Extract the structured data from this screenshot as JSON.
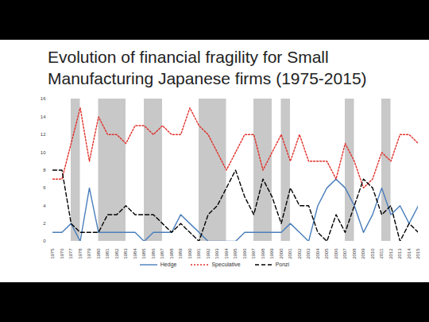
{
  "chart_data": {
    "type": "line",
    "title": "Evolution of financial fragility for Small Manufacturing Japanese firms (1975-2015)",
    "x": [
      1975,
      1976,
      1977,
      1978,
      1979,
      1980,
      1981,
      1982,
      1983,
      1984,
      1985,
      1986,
      1987,
      1988,
      1989,
      1990,
      1991,
      1992,
      1993,
      1994,
      1995,
      1996,
      1997,
      1998,
      1999,
      2000,
      2001,
      2002,
      2003,
      2004,
      2005,
      2006,
      2007,
      2008,
      2009,
      2010,
      2011,
      2012,
      2013,
      2014,
      2015
    ],
    "series": [
      {
        "name": "Hedge",
        "color": "#4a7ebb",
        "line_style": "solid",
        "values": [
          1,
          1,
          2,
          0,
          6,
          1,
          1,
          1,
          1,
          1,
          0,
          1,
          1,
          1,
          3,
          2,
          1,
          0,
          0,
          0,
          0,
          1,
          1,
          1,
          1,
          1,
          2,
          1,
          0,
          4,
          6,
          7,
          6,
          4,
          1,
          3,
          6,
          3,
          4,
          2,
          4
        ]
      },
      {
        "name": "Speculative",
        "color": "#e0302a",
        "line_style": "dotted",
        "values": [
          7,
          7,
          11,
          15,
          9,
          14,
          12,
          12,
          11,
          13,
          13,
          12,
          13,
          12,
          12,
          15,
          13,
          12,
          10,
          8,
          10,
          12,
          12,
          8,
          10,
          12,
          9,
          12,
          9,
          9,
          9,
          7,
          11,
          9,
          6,
          7,
          10,
          9,
          12,
          12,
          11
        ]
      },
      {
        "name": "Ponzi",
        "color": "#000000",
        "line_style": "dashed",
        "values": [
          8,
          8,
          2,
          1,
          1,
          1,
          3,
          3,
          4,
          3,
          3,
          3,
          2,
          1,
          2,
          1,
          0,
          3,
          4,
          6,
          8,
          5,
          3,
          7,
          5,
          2,
          6,
          4,
          4,
          1,
          0,
          3,
          1,
          4,
          7,
          6,
          3,
          4,
          0,
          2,
          1
        ]
      }
    ],
    "shaded": [
      [
        1977,
        1978
      ],
      [
        1980,
        1983
      ],
      [
        1985,
        1987
      ],
      [
        1991,
        1994
      ],
      [
        1997,
        1999
      ],
      [
        2000,
        2001
      ],
      [
        2007,
        2008
      ],
      [
        2011,
        2012
      ]
    ],
    "xlim": [
      1975,
      2015
    ],
    "xticks": [
      1975,
      1976,
      1977,
      1978,
      1979,
      1980,
      1981,
      1982,
      1983,
      1984,
      1985,
      1986,
      1987,
      1988,
      1989,
      1990,
      1991,
      1992,
      1993,
      1994,
      1995,
      1996,
      1997,
      1998,
      1999,
      2000,
      2001,
      2002,
      2003,
      2004,
      2005,
      2006,
      2007,
      2008,
      2009,
      2010,
      2011,
      2012,
      2013,
      2014,
      2015
    ],
    "ylim": [
      0,
      16
    ],
    "yticks": [
      0,
      2,
      4,
      6,
      8,
      10,
      12,
      14,
      16
    ],
    "grid": false,
    "legend": "bottom"
  }
}
